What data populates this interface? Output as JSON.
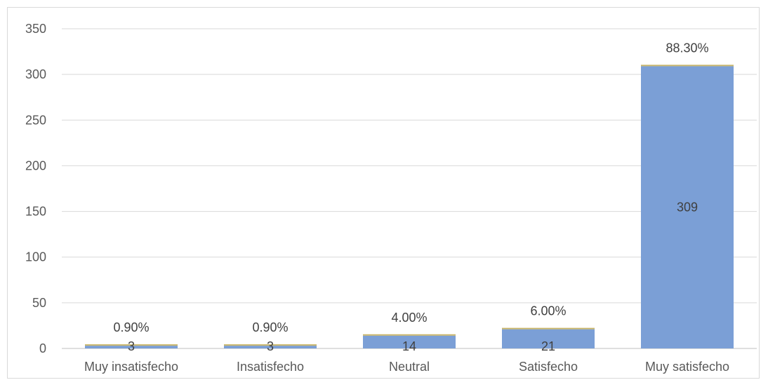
{
  "chart_data": {
    "type": "bar",
    "categories": [
      "Muy insatisfecho",
      "Insatisfecho",
      "Neutral",
      "Satisfecho",
      "Muy satisfecho"
    ],
    "values": [
      3,
      3,
      14,
      21,
      309
    ],
    "percent_labels": [
      "0.90%",
      "0.90%",
      "4.00%",
      "6.00%",
      "88.30%"
    ],
    "ylim": [
      0,
      350
    ],
    "yticks": [
      "0",
      "50",
      "100",
      "150",
      "200",
      "250",
      "300",
      "350"
    ],
    "grid": true,
    "bar_color": "#7b9fd6",
    "cap_color": "#c8b56a"
  }
}
